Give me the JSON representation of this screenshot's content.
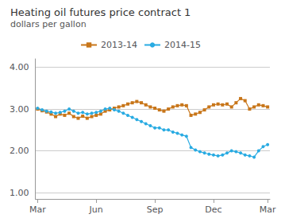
{
  "chart_data": {
    "type": "line",
    "title": "Heating oil futures price contract 1",
    "subtitle": "dollars per gallon",
    "categories": [
      "Mar",
      null,
      null,
      null,
      null,
      null,
      null,
      null,
      null,
      null,
      null,
      null,
      null,
      "Jun",
      null,
      null,
      null,
      null,
      null,
      null,
      null,
      null,
      null,
      null,
      null,
      null,
      "Sep",
      null,
      null,
      null,
      null,
      null,
      null,
      null,
      null,
      null,
      null,
      null,
      null,
      "Dec",
      null,
      null,
      null,
      null,
      null,
      null,
      null,
      null,
      null,
      null,
      null,
      "Mar"
    ],
    "series": [
      {
        "name": "2013-14",
        "color": "#c8761a",
        "marker": "square",
        "values": [
          3.0,
          2.96,
          2.93,
          2.88,
          2.82,
          2.88,
          2.85,
          2.9,
          2.82,
          2.78,
          2.83,
          2.78,
          2.82,
          2.85,
          2.88,
          2.95,
          2.98,
          3.02,
          3.05,
          3.08,
          3.12,
          3.15,
          3.18,
          3.15,
          3.1,
          3.05,
          3.02,
          2.98,
          2.95,
          3.0,
          3.05,
          3.08,
          3.1,
          3.08,
          2.85,
          2.88,
          2.92,
          2.98,
          3.05,
          3.1,
          3.12,
          3.1,
          3.12,
          3.05,
          3.15,
          3.25,
          3.2,
          3.0,
          3.05,
          3.1,
          3.08,
          3.05
        ]
      },
      {
        "name": "2014-15",
        "color": "#29abe2",
        "marker": "circle",
        "values": [
          3.02,
          2.98,
          2.95,
          2.93,
          2.9,
          2.92,
          2.95,
          3.0,
          2.95,
          2.9,
          2.92,
          2.88,
          2.9,
          2.92,
          2.95,
          3.0,
          3.02,
          2.98,
          2.95,
          2.9,
          2.85,
          2.8,
          2.75,
          2.7,
          2.65,
          2.6,
          2.55,
          2.55,
          2.5,
          2.5,
          2.45,
          2.42,
          2.38,
          2.35,
          2.08,
          2.02,
          1.98,
          1.95,
          1.92,
          1.9,
          1.88,
          1.9,
          1.95,
          2.0,
          1.98,
          1.95,
          1.9,
          1.88,
          1.85,
          2.0,
          2.1,
          2.15
        ]
      }
    ],
    "ylim": [
      0.85,
      4.2
    ],
    "yticks": [
      {
        "value": 1,
        "label": "1.00"
      },
      {
        "value": 2,
        "label": "2.00"
      },
      {
        "value": 3,
        "label": "3.00"
      },
      {
        "value": 4,
        "label": "4.00"
      }
    ],
    "grid": true,
    "legend": "top"
  }
}
